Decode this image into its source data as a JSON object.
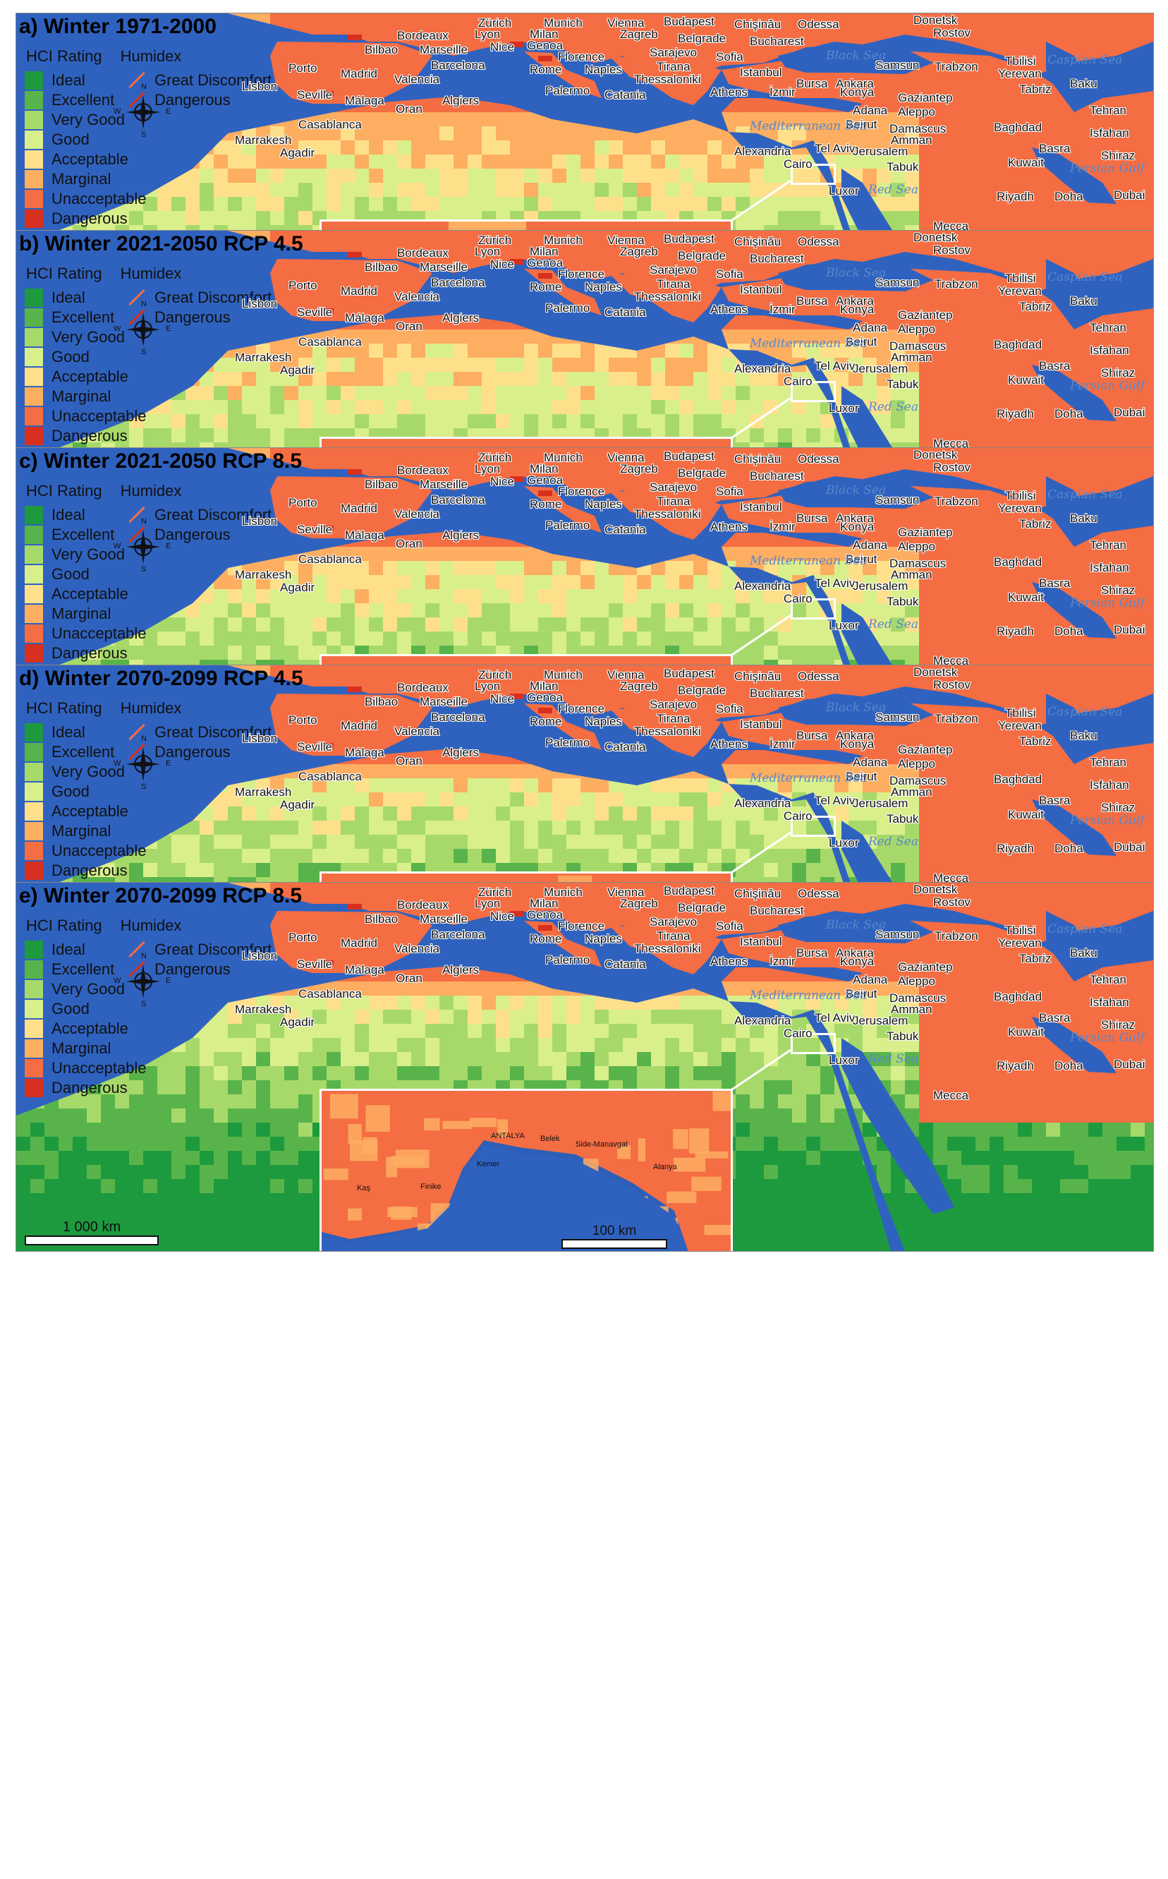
{
  "colors": {
    "sea": "#2f62bf",
    "ideal": "#1d9a3e",
    "excellent": "#58b44a",
    "very_good": "#a7d96a",
    "good": "#d9ef8b",
    "acceptable": "#fee08b",
    "marginal": "#fdae61",
    "unacceptable": "#f46d43",
    "dangerous": "#d7301f",
    "great_discomfort": "#f46d43",
    "dangerous_humidex": "#d7301f"
  },
  "legend": {
    "hci_header": "HCI Rating",
    "humidex_header": "Humidex",
    "hci_items": [
      {
        "label": "Ideal",
        "color": "#1d9a3e"
      },
      {
        "label": "Excellent",
        "color": "#58b44a"
      },
      {
        "label": "Very Good",
        "color": "#a7d96a"
      },
      {
        "label": "Good",
        "color": "#d9ef8b"
      },
      {
        "label": "Acceptable",
        "color": "#fee08b"
      },
      {
        "label": "Marginal",
        "color": "#fdae61"
      },
      {
        "label": "Unacceptable",
        "color": "#f46d43"
      },
      {
        "label": "Dangerous",
        "color": "#d7301f"
      }
    ],
    "humidex_items": [
      {
        "label": "Great Discomfort",
        "color": "#f46d43"
      },
      {
        "label": "Dangerous",
        "color": "#d7301f"
      }
    ]
  },
  "scale_main": "1 000  km",
  "scale_inset": "100  km",
  "compass_labels": {
    "n": "N",
    "s": "S",
    "e": "E",
    "w": "W"
  },
  "cities": [
    "Zürich",
    "Munich",
    "Vienna",
    "Budapest",
    "Chişinău",
    "Odessa",
    "Donetsk",
    "Rostov",
    "Bordeaux",
    "Lyon",
    "Milan",
    "Zagreb",
    "Belgrade",
    "Bucharest",
    "Genoa",
    "Bilbao",
    "Marseille",
    "Nice",
    "Florence",
    "Sarajevo",
    "Sofia",
    "Porto",
    "Madrid",
    "Barcelona",
    "Rome",
    "Naples",
    "Tirana",
    "Istanbul",
    "Samsun",
    "Trabzon",
    "Tbilisi",
    "Yerevan",
    "Valencia",
    "Thessaloniki",
    "Bursa",
    "Ankara",
    "Baku",
    "Tabriz",
    "Lisbon",
    "Seville",
    "Málaga",
    "Palermo",
    "Catania",
    "Athens",
    "İzmir",
    "Konya",
    "Gaziantep",
    "Algiers",
    "Oran",
    "Adana",
    "Aleppo",
    "Tehran",
    "Casablanca",
    "Beirut",
    "Damascus",
    "Baghdad",
    "Isfahan",
    "Amman",
    "Marrakesh",
    "Alexandria",
    "Tel Aviv",
    "Jerusalem",
    "Basra",
    "Shiraz",
    "Agadir",
    "Cairo",
    "Tabuk",
    "Kuwait",
    "Luxor",
    "Riyadh",
    "Doha",
    "Dubai",
    "Mecca"
  ],
  "seas": [
    "Black Sea",
    "Caspian Sea",
    "Mediterranean Sea",
    "Red Sea",
    "Persian Gulf"
  ],
  "inset_places": [
    "ANTALYA",
    "Belek",
    "Side-Manavgat",
    "Alanya",
    "Kemer",
    "Finike",
    "Kaş"
  ],
  "panels": [
    {
      "title": "a) Winter 1971-2000",
      "scenario": 0
    },
    {
      "title": "b) Winter 2021-2050 RCP 4.5",
      "scenario": 1
    },
    {
      "title": "c) Winter 2021-2050 RCP 8.5",
      "scenario": 2
    },
    {
      "title": "d) Winter 2070-2099 RCP 4.5",
      "scenario": 3
    },
    {
      "title": "e) Winter 2070-2099 RCP 8.5",
      "scenario": 4
    }
  ]
}
